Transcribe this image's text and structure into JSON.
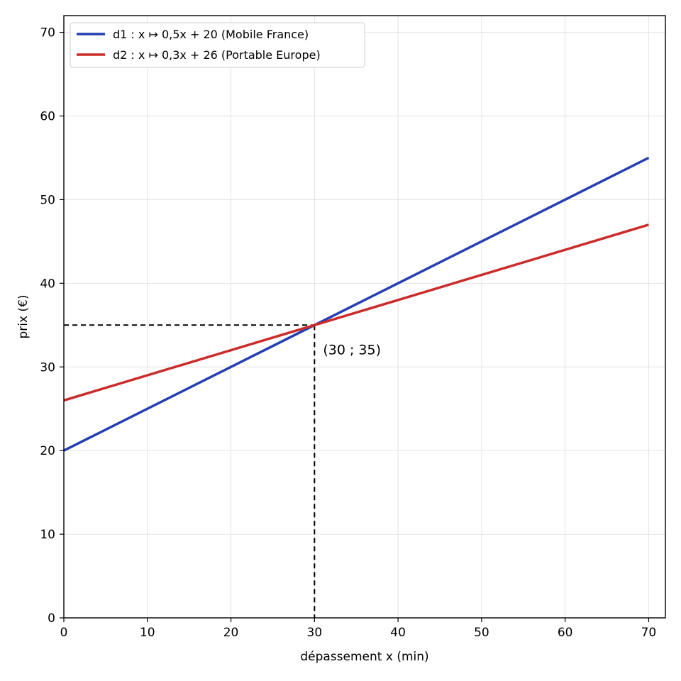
{
  "chart_data": {
    "type": "line",
    "title": "",
    "xlabel": "dépassement x (min)",
    "ylabel": "prix (€)",
    "xlim": [
      0,
      72
    ],
    "ylim": [
      0,
      72
    ],
    "xticks": [
      0,
      10,
      20,
      30,
      40,
      50,
      60,
      70
    ],
    "yticks": [
      0,
      10,
      20,
      30,
      40,
      50,
      60,
      70
    ],
    "grid": true,
    "legend_position": "top-left",
    "series": [
      {
        "name": "d1 : x ↦ 0,5x + 20 (Mobile France)",
        "color": "#2340b0",
        "x": [
          0,
          70
        ],
        "y": [
          20,
          55
        ]
      },
      {
        "name": "d2 : x ↦ 0,3x + 26 (Portable Europe)",
        "color": "#cc2b2b",
        "x": [
          0,
          70
        ],
        "y": [
          26,
          47
        ]
      }
    ],
    "intersection": {
      "x": 30,
      "y": 35,
      "label": "(30 ; 35)"
    }
  }
}
